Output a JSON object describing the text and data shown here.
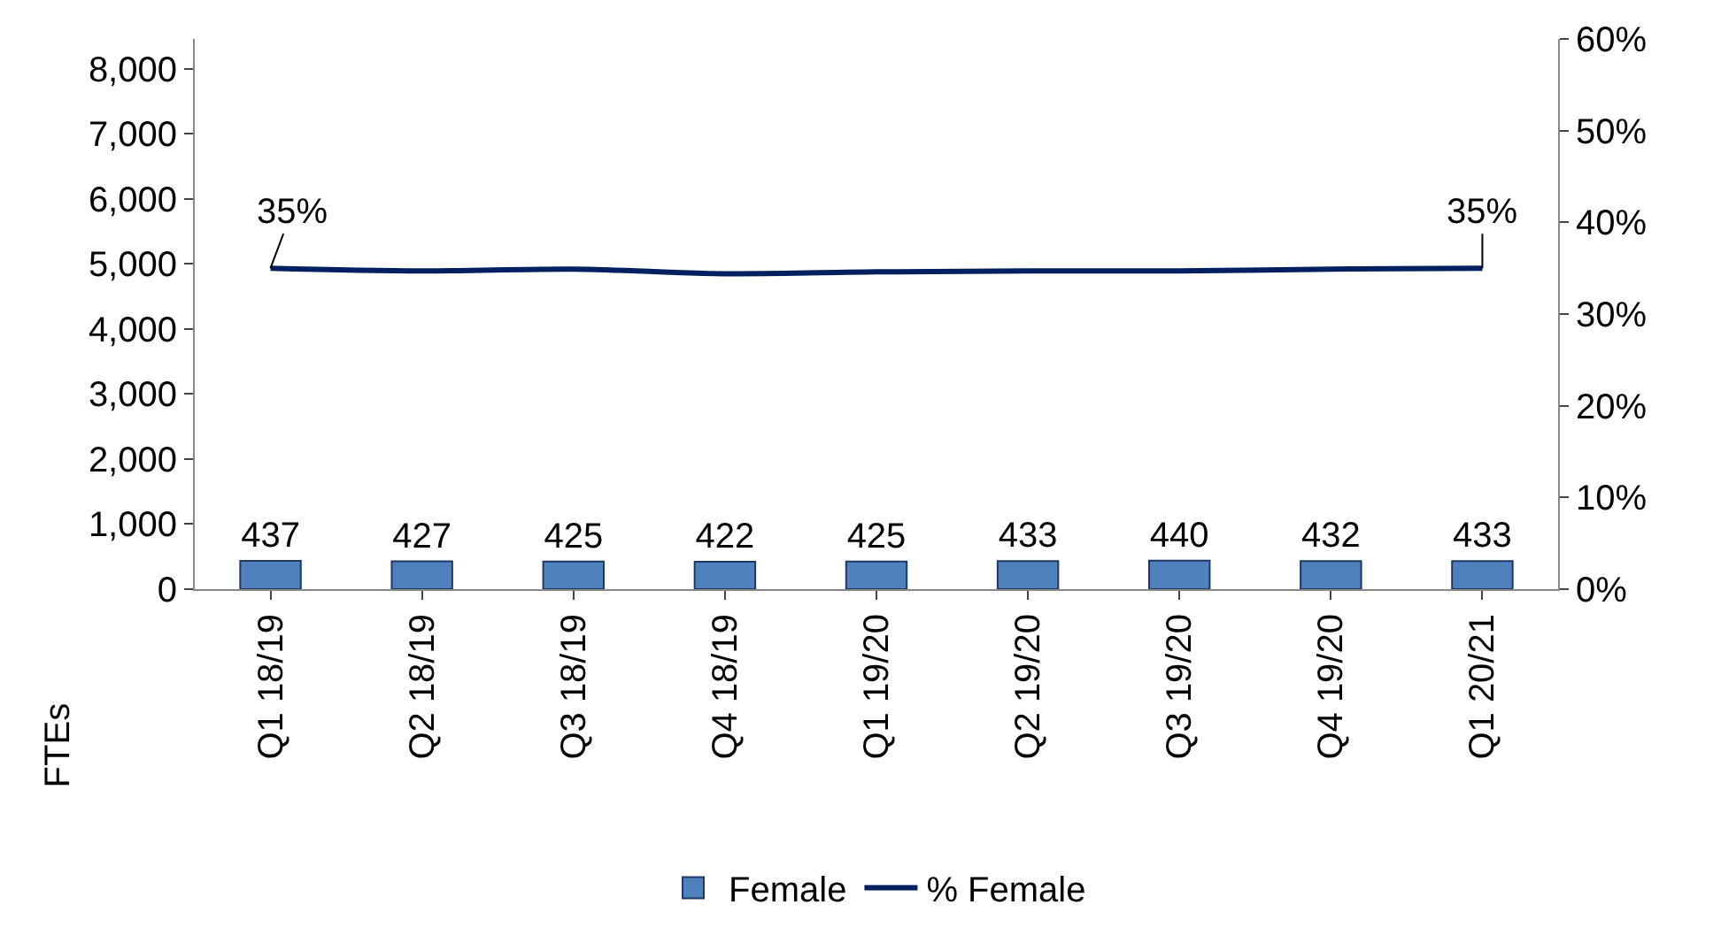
{
  "chart_data": {
    "type": "bar",
    "ylabel": "FTEs",
    "categories": [
      "Q1 18/19",
      "Q2 18/19",
      "Q3 18/19",
      "Q4 18/19",
      "Q1 19/20",
      "Q2 19/20",
      "Q3 19/20",
      "Q4 19/20",
      "Q1 20/21"
    ],
    "series": [
      {
        "name": "Female",
        "color": "#4f81bd",
        "values": [
          437,
          427,
          425,
          422,
          425,
          433,
          440,
          432,
          433
        ],
        "data_labels": true
      },
      {
        "name": "% Female",
        "type": "line",
        "axis": "y2",
        "color": "#002060",
        "values": [
          35,
          34.7,
          34.9,
          34.4,
          34.6,
          34.7,
          34.7,
          34.9,
          35
        ],
        "value_labels": [
          "35%",
          null,
          null,
          null,
          null,
          null,
          null,
          null,
          "35%"
        ]
      }
    ],
    "ylim": [
      0,
      8460
    ],
    "yticks": [
      0,
      {
        "value": 1000,
        "label": "1,000"
      },
      {
        "value": 2000,
        "label": "2,000"
      },
      {
        "value": 3000,
        "label": "3,000"
      },
      {
        "value": 4000,
        "label": "4,000"
      },
      {
        "value": 5000,
        "label": "5,000"
      },
      {
        "value": 6000,
        "label": "6,000"
      },
      {
        "value": 7000,
        "label": "7,000"
      },
      {
        "value": 8000,
        "label": "8,000"
      }
    ],
    "y2lim": [
      0,
      60
    ],
    "y2ticks": [
      {
        "value": 0,
        "label": "0%"
      },
      {
        "value": 10,
        "label": "10%"
      },
      {
        "value": 20,
        "label": "20%"
      },
      {
        "value": 30,
        "label": "30%"
      },
      {
        "value": 40,
        "label": "40%"
      },
      {
        "value": 50,
        "label": "50%"
      },
      {
        "value": 60,
        "label": "60%"
      }
    ],
    "legend": "bottom",
    "marker": "none",
    "line_style": "solid"
  }
}
